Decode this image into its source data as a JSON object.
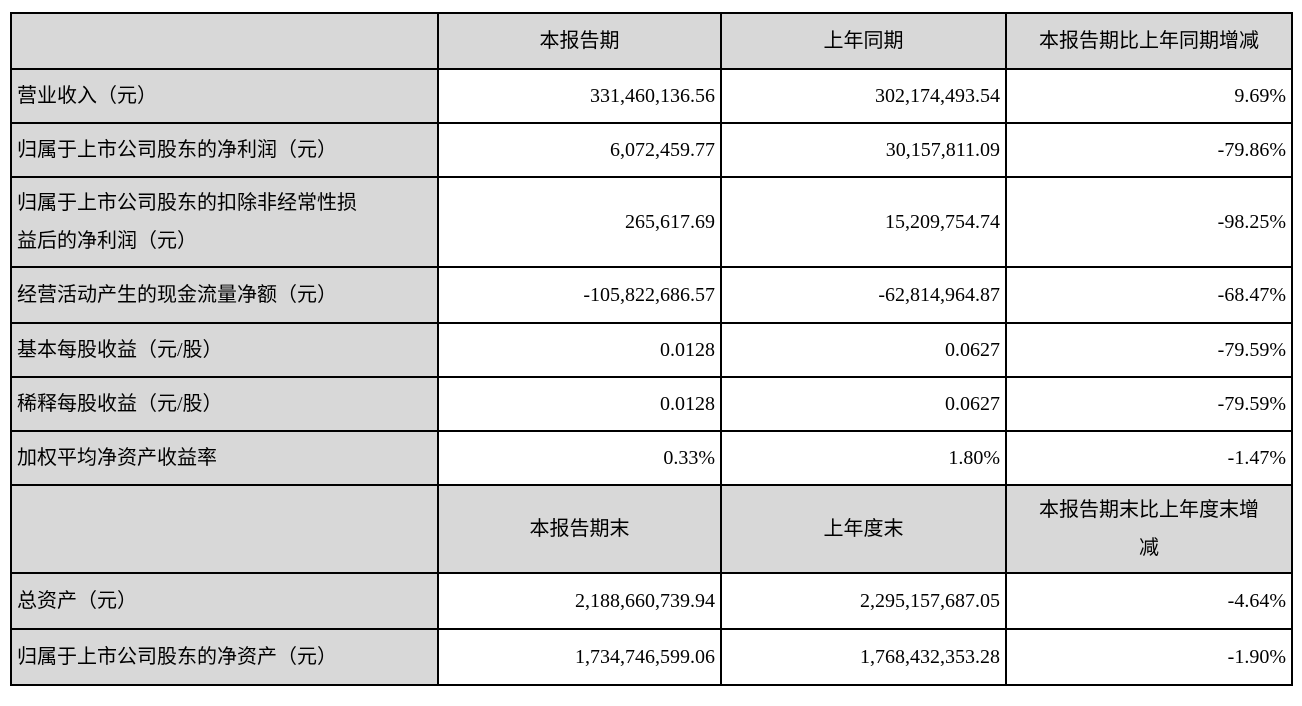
{
  "colors": {
    "header_bg": "#d8d8d8",
    "label_bg": "#d8d8d8",
    "cell_bg": "#ffffff",
    "border": "#000000",
    "text": "#000000"
  },
  "table": {
    "section1": {
      "corner_label": "",
      "header": {
        "current": "本报告期",
        "prior": "上年同期",
        "change": "本报告期比上年同期增减"
      },
      "rows": [
        {
          "label": "营业收入（元）",
          "current": "331,460,136.56",
          "prior": "302,174,493.54",
          "change": "9.69%"
        },
        {
          "label": "归属于上市公司股东的净利润（元）",
          "current": "6,072,459.77",
          "prior": "30,157,811.09",
          "change": "-79.86%"
        },
        {
          "label": "归属于上市公司股东的扣除非经常性损\n益后的净利润（元）",
          "current": "265,617.69",
          "prior": "15,209,754.74",
          "change": "-98.25%"
        },
        {
          "label": "经营活动产生的现金流量净额（元）",
          "current": "-105,822,686.57",
          "prior": "-62,814,964.87",
          "change": "-68.47%"
        },
        {
          "label": "基本每股收益（元/股）",
          "current": "0.0128",
          "prior": "0.0627",
          "change": "-79.59%"
        },
        {
          "label": "稀释每股收益（元/股）",
          "current": "0.0128",
          "prior": "0.0627",
          "change": "-79.59%"
        },
        {
          "label": "加权平均净资产收益率",
          "current": "0.33%",
          "prior": "1.80%",
          "change": "-1.47%"
        }
      ]
    },
    "section2": {
      "corner_label": "",
      "header": {
        "current": "本报告期末",
        "prior": "上年度末",
        "change": "本报告期末比上年度末增\n减"
      },
      "rows": [
        {
          "label": "总资产（元）",
          "current": "2,188,660,739.94",
          "prior": "2,295,157,687.05",
          "change": "-4.64%"
        },
        {
          "label": "归属于上市公司股东的净资产（元）",
          "current": "1,734,746,599.06",
          "prior": "1,768,432,353.28",
          "change": "-1.90%"
        }
      ]
    }
  }
}
